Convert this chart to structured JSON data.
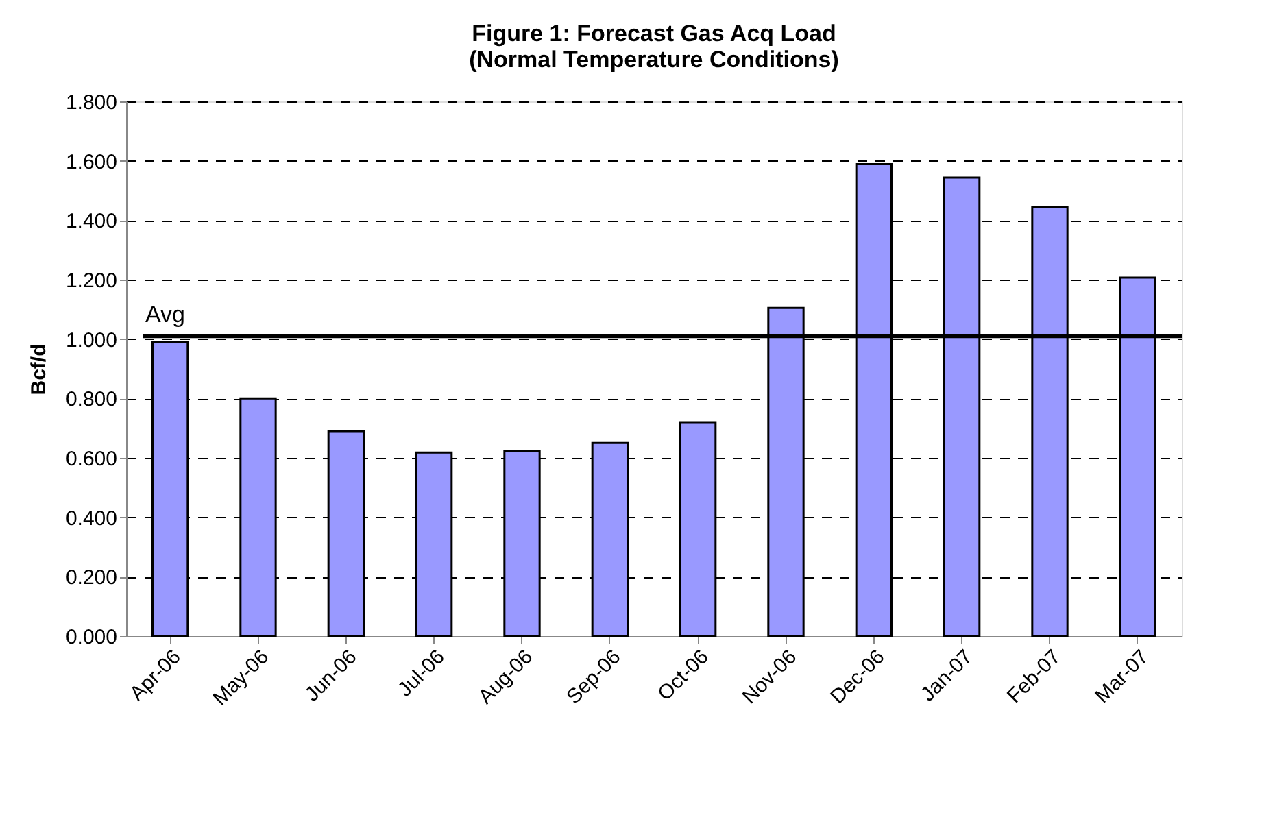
{
  "chart_data": {
    "type": "bar",
    "title": "Figure 1: Forecast Gas Acq Load\n(Normal Temperature Conditions)",
    "ylabel": "Bcf/d",
    "categories": [
      "Apr-06",
      "May-06",
      "Jun-06",
      "Jul-06",
      "Aug-06",
      "Sep-06",
      "Oct-06",
      "Nov-06",
      "Dec-06",
      "Jan-07",
      "Feb-07",
      "Mar-07"
    ],
    "values": [
      0.99,
      0.8,
      0.69,
      0.618,
      0.622,
      0.65,
      0.72,
      1.105,
      1.589,
      1.544,
      1.445,
      1.207
    ],
    "color": "#9999ff",
    "ylim": [
      0,
      1.8
    ],
    "yticks": [
      {
        "value": 0,
        "label": "0.000"
      },
      {
        "value": 0.2,
        "label": "0.200"
      },
      {
        "value": 0.4,
        "label": "0.400"
      },
      {
        "value": 0.6,
        "label": "0.600"
      },
      {
        "value": 0.8,
        "label": "0.800"
      },
      {
        "value": 1.0,
        "label": "1.000"
      },
      {
        "value": 1.2,
        "label": "1.200"
      },
      {
        "value": 1.4,
        "label": "1.400"
      },
      {
        "value": 1.6,
        "label": "1.600"
      },
      {
        "value": 1.8,
        "label": "1.800"
      }
    ],
    "grid": "y",
    "ref_lines": [
      {
        "axis": "y",
        "value": 1.01,
        "label": "Avg",
        "color": "#000000"
      }
    ]
  }
}
